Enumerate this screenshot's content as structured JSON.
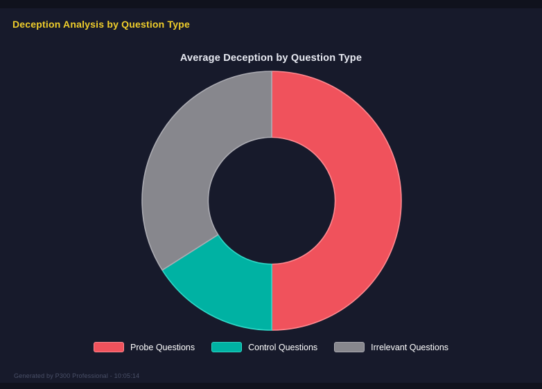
{
  "page": {
    "title": "Deception Analysis by Question Type",
    "title_color": "#EFCD2B",
    "background": "#171A2B",
    "footer": "Generated by P300 Professional - 10:05:14"
  },
  "chart_data": {
    "type": "pie",
    "variant": "donut",
    "title": "Average Deception by Question Type",
    "categories": [
      "Probe Questions",
      "Control Questions",
      "Irrelevant Questions"
    ],
    "values": [
      50,
      16,
      34
    ],
    "value_format": "percent-share-estimated-from-arc-angles",
    "colors": [
      "#F0525C",
      "#00B2A3",
      "#87878D"
    ],
    "border_colors": [
      "#FF8A91",
      "#2FD8C7",
      "#ACACB3"
    ],
    "start_angle_deg": 0,
    "direction": "clockwise",
    "inner_radius_ratio": 0.49,
    "legend_position": "bottom",
    "data_labels": "none"
  }
}
